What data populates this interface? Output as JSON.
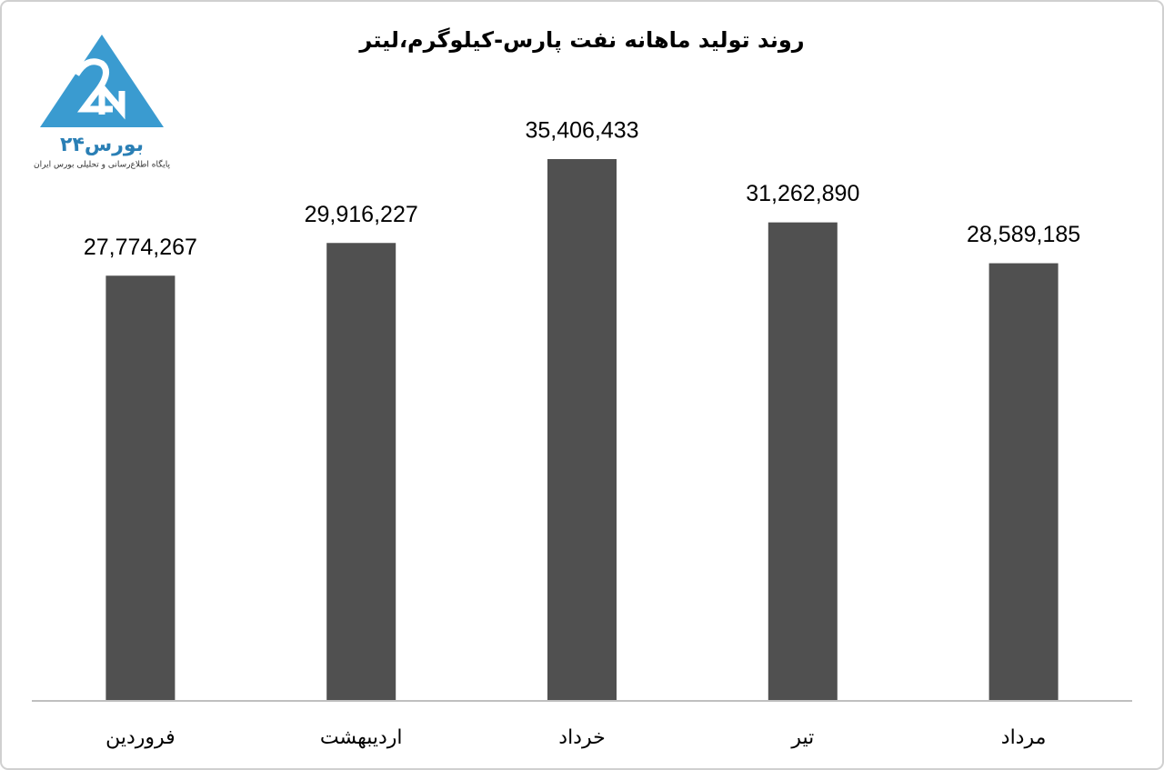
{
  "logo": {
    "name": "بورس۲۴",
    "tagline": "پایگاه اطلاع‌رسانی و تحلیلی بورس ایران"
  },
  "chart_data": {
    "type": "bar",
    "title": "روند تولید ماهانه نفت پارس-کیلوگرم،لیتر",
    "categories": [
      "فروردین",
      "اردیبهشت",
      "خرداد",
      "تیر",
      "مرداد"
    ],
    "values": [
      27774267,
      29916227,
      35406433,
      31262890,
      28589185
    ],
    "value_labels": [
      "27,774,267",
      "29,916,227",
      "35,406,433",
      "31,262,890",
      "28,589,185"
    ],
    "color": "#505050"
  }
}
